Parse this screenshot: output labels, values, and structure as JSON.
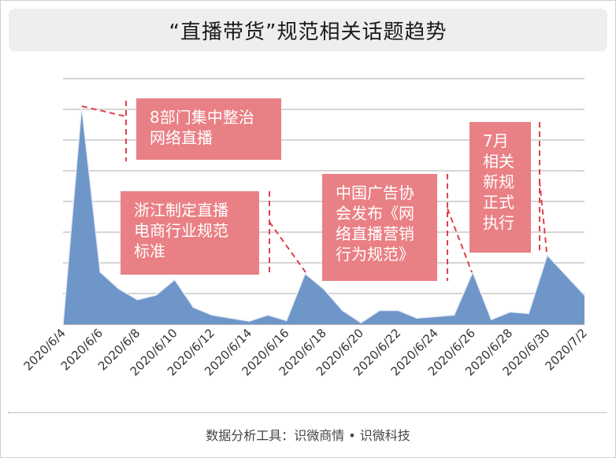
{
  "title": "“直播带货”规范相关话题趋势",
  "footer": "数据分析工具：识微商情 • 识微科技",
  "colors": {
    "area_fill": "#6f96c9",
    "area_stroke": "#e9eef6",
    "annotation_box": "#e98085",
    "annotation_text": "#ffffff",
    "dash": "#e0404a",
    "grid": "#c8c8c8"
  },
  "chart_data": {
    "type": "area",
    "title": "“直播带货”规范相关话题趋势",
    "xlabel": "",
    "ylabel": "",
    "ylim": [
      0,
      8
    ],
    "grid": true,
    "y_axis_labels": false,
    "x": [
      "2020/6/4",
      "2020/6/5",
      "2020/6/6",
      "2020/6/7",
      "2020/6/8",
      "2020/6/9",
      "2020/6/10",
      "2020/6/11",
      "2020/6/12",
      "2020/6/13",
      "2020/6/14",
      "2020/6/15",
      "2020/6/16",
      "2020/6/17",
      "2020/6/18",
      "2020/6/19",
      "2020/6/20",
      "2020/6/21",
      "2020/6/22",
      "2020/6/23",
      "2020/6/24",
      "2020/6/25",
      "2020/6/26",
      "2020/6/27",
      "2020/6/28",
      "2020/6/29",
      "2020/6/30",
      "2020/7/1",
      "2020/7/2"
    ],
    "x_tick_labels": [
      "2020/6/4",
      "2020/6/6",
      "2020/6/8",
      "2020/6/10",
      "2020/6/12",
      "2020/6/14",
      "2020/6/16",
      "2020/6/18",
      "2020/6/20",
      "2020/6/22",
      "2020/6/24",
      "2020/6/26",
      "2020/6/28",
      "2020/6/30",
      "2020/7/2"
    ],
    "series": [
      {
        "values": [
          0,
          7.1,
          1.7,
          1.15,
          0.8,
          0.95,
          1.45,
          0.55,
          0.3,
          0.2,
          0.1,
          0.3,
          0.12,
          1.65,
          1.15,
          0.45,
          0.05,
          0.45,
          0.45,
          0.2,
          0.25,
          0.3,
          1.7,
          0.15,
          0.4,
          0.35,
          2.25,
          1.6,
          0.95
        ]
      }
    ],
    "annotations": [
      {
        "text": "8部门集中整治网络直播",
        "lines": [
          "8部门集中整治",
          "网络直播"
        ]
      },
      {
        "text": "浙江制定直播电商行业规范标准",
        "lines": [
          "浙江制定直播",
          "电商行业规范",
          "标准"
        ]
      },
      {
        "text": "中国广告协会发布《网络直播营销行为规范》",
        "lines": [
          "中国广告协",
          "会发布《网",
          "络直播营销",
          "行为规范》"
        ]
      },
      {
        "text": "7月相关新规正式执行",
        "lines": [
          "7月",
          "相关",
          "新规",
          "正式",
          "执行"
        ]
      }
    ]
  }
}
